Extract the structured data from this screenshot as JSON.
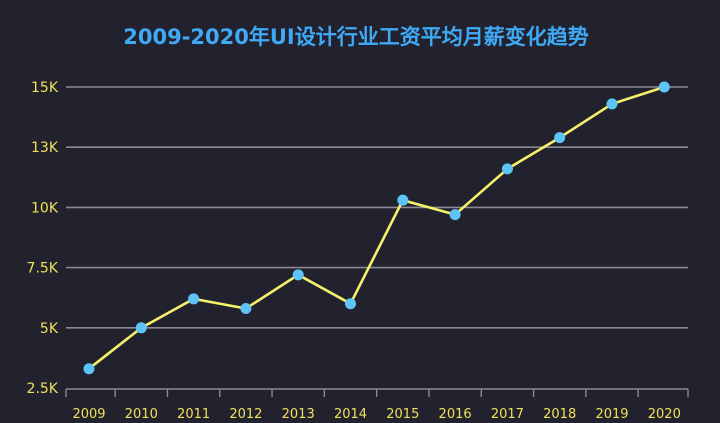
{
  "chart_data": {
    "type": "line",
    "title": "2009-2020年UI设计行业工资平均月薪变化趋势",
    "xlabel": "",
    "ylabel": "",
    "x": [
      "2009",
      "2010",
      "2011",
      "2012",
      "2013",
      "2014",
      "2015",
      "2016",
      "2017",
      "2018",
      "2019",
      "2020"
    ],
    "series": [
      {
        "values": [
          3300,
          5000,
          6200,
          5800,
          7200,
          6000,
          10300,
          9700,
          11600,
          12900,
          14300,
          15000
        ]
      }
    ],
    "y_ticks": [
      {
        "value": 2500,
        "label": "2.5K"
      },
      {
        "value": 5000,
        "label": "5K"
      },
      {
        "value": 7500,
        "label": "7.5K"
      },
      {
        "value": 10000,
        "label": "10K"
      },
      {
        "value": 12500,
        "label": "13K"
      },
      {
        "value": 15000,
        "label": "15K"
      }
    ],
    "ylim": [
      2500,
      15000
    ],
    "grid": true,
    "legend": "none",
    "colors": {
      "line": "#f5f06a",
      "marker": "#5ec4f5",
      "title": "#3fa9f5",
      "labels": "#f0e05a",
      "background": "#22222f"
    }
  }
}
